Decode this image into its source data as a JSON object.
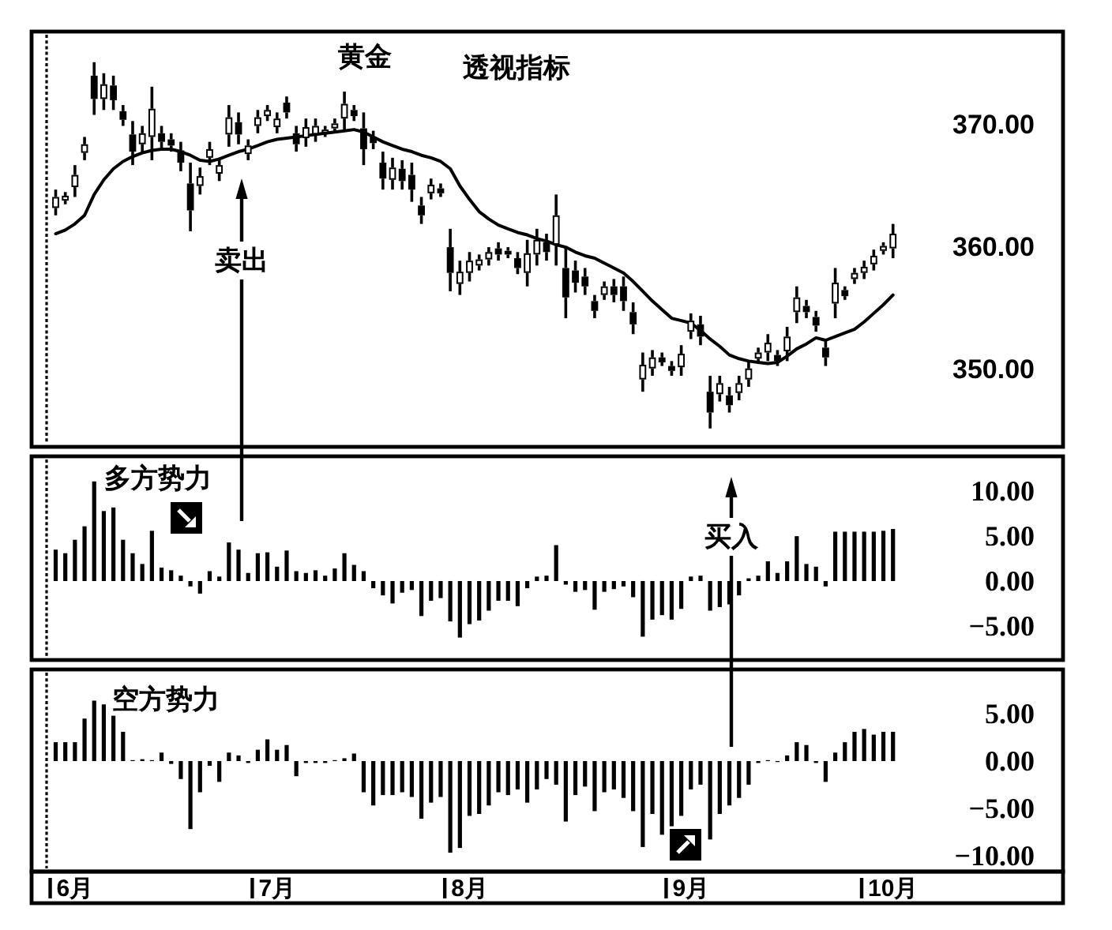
{
  "chart_data": [
    {
      "type": "candlestick",
      "title": "黄金",
      "subtitle": "透视指标",
      "categories": [
        null,
        null,
        null,
        null,
        null,
        null,
        null,
        null,
        null,
        null,
        null,
        null,
        null,
        null,
        null,
        null,
        null,
        null,
        null,
        null,
        null,
        null,
        null,
        null,
        null,
        null,
        null,
        null,
        null,
        null,
        null,
        null,
        null,
        null,
        null,
        null,
        null,
        null,
        null,
        null,
        null,
        null,
        null,
        null,
        null,
        null,
        null,
        null,
        null,
        null,
        null,
        null,
        null,
        null,
        null,
        null,
        null,
        null,
        null,
        null,
        null,
        null,
        null,
        null,
        null,
        null,
        null,
        null,
        null,
        null,
        null,
        null,
        null,
        null,
        null,
        null,
        null,
        null,
        null,
        null,
        null,
        null,
        null,
        null,
        null,
        null,
        null,
        null
      ],
      "ohlc": [
        [
          363.2,
          364.7,
          362.6,
          364.1
        ],
        [
          363.8,
          364.5,
          363.5,
          364.2
        ],
        [
          364.9,
          366.7,
          364.1,
          365.9
        ],
        [
          367.7,
          369.0,
          367.1,
          368.4
        ],
        [
          374.0,
          375.1,
          370.8,
          372.1
        ],
        [
          372.1,
          374.2,
          371.2,
          373.3
        ],
        [
          373.2,
          374.0,
          371.2,
          372.0
        ],
        [
          371.1,
          371.6,
          369.9,
          370.4
        ],
        [
          369.2,
          370.3,
          366.7,
          367.8
        ],
        [
          368.4,
          369.9,
          367.8,
          369.3
        ],
        [
          369.0,
          373.1,
          367.1,
          371.3
        ],
        [
          369.3,
          369.9,
          368.0,
          368.6
        ],
        [
          368.8,
          369.3,
          367.8,
          368.3
        ],
        [
          367.9,
          368.6,
          366.2,
          366.9
        ],
        [
          365.2,
          366.9,
          361.3,
          363.0
        ],
        [
          365.0,
          366.5,
          364.3,
          365.8
        ],
        [
          367.3,
          368.6,
          366.7,
          368.0
        ],
        [
          366.0,
          367.3,
          365.4,
          366.7
        ],
        [
          369.2,
          371.6,
          368.2,
          370.6
        ],
        [
          370.2,
          371.0,
          368.4,
          369.2
        ],
        [
          367.6,
          368.8,
          367.1,
          368.3
        ],
        [
          369.9,
          371.2,
          369.3,
          370.6
        ],
        [
          370.7,
          371.6,
          370.3,
          371.2
        ],
        [
          369.8,
          371.0,
          369.3,
          370.5
        ],
        [
          371.8,
          372.3,
          370.5,
          371.0
        ],
        [
          369.3,
          369.9,
          367.8,
          368.4
        ],
        [
          368.9,
          370.5,
          368.2,
          369.8
        ],
        [
          369.2,
          370.5,
          368.6,
          369.9
        ],
        [
          369.3,
          369.9,
          369.0,
          369.6
        ],
        [
          369.7,
          370.5,
          369.3,
          370.1
        ],
        [
          370.5,
          372.7,
          369.5,
          371.7
        ],
        [
          371.2,
          371.6,
          370.3,
          370.7
        ],
        [
          369.7,
          371.0,
          366.7,
          368.0
        ],
        [
          369.0,
          369.5,
          368.0,
          368.5
        ],
        [
          366.9,
          367.8,
          364.7,
          365.6
        ],
        [
          365.5,
          367.3,
          364.7,
          366.5
        ],
        [
          366.4,
          367.1,
          364.7,
          365.4
        ],
        [
          365.9,
          366.9,
          363.7,
          364.7
        ],
        [
          363.4,
          364.1,
          361.9,
          362.6
        ],
        [
          364.4,
          365.6,
          363.9,
          365.1
        ],
        [
          364.8,
          365.2,
          364.1,
          364.4
        ],
        [
          360.0,
          361.5,
          356.4,
          357.9
        ],
        [
          357.0,
          358.9,
          356.1,
          358.0
        ],
        [
          357.9,
          359.6,
          357.2,
          358.9
        ],
        [
          358.5,
          359.4,
          358.1,
          359.0
        ],
        [
          359.0,
          360.0,
          358.5,
          359.6
        ],
        [
          359.9,
          360.4,
          358.9,
          359.4
        ],
        [
          359.7,
          360.0,
          359.1,
          359.4
        ],
        [
          359.1,
          359.6,
          357.8,
          358.3
        ],
        [
          357.9,
          360.6,
          356.8,
          359.5
        ],
        [
          359.4,
          361.5,
          358.5,
          360.6
        ],
        [
          360.4,
          361.1,
          358.9,
          359.6
        ],
        [
          360.2,
          364.3,
          358.5,
          362.6
        ],
        [
          358.3,
          360.0,
          354.2,
          355.9
        ],
        [
          358.1,
          358.9,
          356.3,
          357.1
        ],
        [
          357.6,
          358.3,
          356.1,
          356.8
        ],
        [
          355.6,
          356.1,
          354.2,
          354.8
        ],
        [
          356.1,
          357.2,
          355.7,
          356.8
        ],
        [
          356.8,
          357.4,
          355.5,
          356.1
        ],
        [
          356.8,
          357.6,
          354.8,
          355.6
        ],
        [
          354.7,
          355.5,
          352.9,
          353.7
        ],
        [
          349.2,
          351.4,
          348.2,
          350.4
        ],
        [
          350.1,
          351.6,
          349.5,
          351.0
        ],
        [
          351.0,
          351.4,
          350.3,
          350.6
        ],
        [
          350.3,
          350.7,
          349.5,
          349.9
        ],
        [
          350.2,
          352.0,
          349.5,
          351.3
        ],
        [
          353.1,
          354.6,
          352.5,
          354.0
        ],
        [
          353.7,
          354.4,
          352.0,
          352.7
        ],
        [
          348.2,
          349.5,
          345.2,
          346.5
        ],
        [
          348.0,
          349.5,
          347.4,
          348.9
        ],
        [
          347.9,
          348.6,
          346.5,
          347.1
        ],
        [
          348.1,
          349.5,
          347.5,
          348.9
        ],
        [
          349.2,
          350.7,
          348.6,
          350.1
        ],
        [
          350.9,
          351.8,
          350.5,
          351.4
        ],
        [
          351.4,
          352.9,
          350.7,
          352.2
        ],
        [
          351.2,
          351.6,
          350.3,
          350.7
        ],
        [
          351.5,
          353.5,
          350.7,
          352.7
        ],
        [
          354.7,
          356.8,
          353.8,
          355.9
        ],
        [
          355.2,
          355.7,
          354.2,
          354.7
        ],
        [
          354.3,
          354.8,
          353.1,
          353.6
        ],
        [
          351.8,
          352.5,
          350.3,
          351.0
        ],
        [
          355.4,
          358.3,
          354.2,
          357.1
        ],
        [
          356.5,
          356.8,
          355.7,
          356.0
        ],
        [
          357.4,
          358.3,
          357.0,
          357.9
        ],
        [
          357.9,
          358.9,
          357.4,
          358.4
        ],
        [
          358.6,
          359.8,
          358.1,
          359.3
        ],
        [
          359.7,
          360.4,
          359.4,
          360.1
        ],
        [
          359.9,
          361.9,
          359.1,
          361.1
        ]
      ],
      "series": [
        {
          "type": "line",
          "color": "#000000",
          "values": [
            361.1,
            361.4,
            361.9,
            362.6,
            364.3,
            365.5,
            366.4,
            367.0,
            367.4,
            367.7,
            367.9,
            368.0,
            368.0,
            367.8,
            367.5,
            367.1,
            367.0,
            367.2,
            367.5,
            367.8,
            368.0,
            368.3,
            368.6,
            368.8,
            368.9,
            369.0,
            369.1,
            369.2,
            369.3,
            369.4,
            369.5,
            369.6,
            369.4,
            369.0,
            368.6,
            368.3,
            368.0,
            367.8,
            367.5,
            367.3,
            367.0,
            366.4,
            365.0,
            363.9,
            362.9,
            362.3,
            361.8,
            361.5,
            361.2,
            361.0,
            360.7,
            360.5,
            360.2,
            360.0,
            359.6,
            359.3,
            359.1,
            358.7,
            358.3,
            357.9,
            357.2,
            356.4,
            355.6,
            354.9,
            354.2,
            354.0,
            353.8,
            353.2,
            352.5,
            351.9,
            351.2,
            350.9,
            350.7,
            350.6,
            350.5,
            350.6,
            351.1,
            351.7,
            352.1,
            352.6,
            352.4,
            352.7,
            353.0,
            353.3,
            353.9,
            354.6,
            355.3,
            356.1
          ]
        }
      ],
      "ylim": [
        343.7,
        377.6
      ],
      "yticks": [
        {
          "value": 370,
          "label": "370.00"
        },
        {
          "value": 360,
          "label": "360.00"
        },
        {
          "value": 350,
          "label": "350.00"
        }
      ],
      "tick_labels": "y",
      "annotations": [
        "卖出"
      ]
    },
    {
      "type": "bar",
      "title": "多方势力",
      "categories": [
        null,
        null,
        null,
        null,
        null,
        null,
        null,
        null,
        null,
        null,
        null,
        null,
        null,
        null,
        null,
        null,
        null,
        null,
        null,
        null,
        null,
        null,
        null,
        null,
        null,
        null,
        null,
        null,
        null,
        null,
        null,
        null,
        null,
        null,
        null,
        null,
        null,
        null,
        null,
        null,
        null,
        null,
        null,
        null,
        null,
        null,
        null,
        null,
        null,
        null,
        null,
        null,
        null,
        null,
        null,
        null,
        null,
        null,
        null,
        null,
        null,
        null,
        null,
        null,
        null,
        null,
        null,
        null,
        null,
        null,
        null,
        null,
        null,
        null,
        null,
        null,
        null,
        null,
        null,
        null,
        null,
        null,
        null,
        null,
        null,
        null,
        null,
        null
      ],
      "series": [
        {
          "color": "#000000",
          "values": [
            3.5,
            3.1,
            4.6,
            6.1,
            11.1,
            7.8,
            8.2,
            4.6,
            3.1,
            1.9,
            5.6,
            1.5,
            1.2,
            0.6,
            -0.6,
            -1.4,
            1.1,
            0.5,
            4.3,
            3.5,
            0.9,
            3.1,
            3.2,
            1.6,
            3.4,
            1.1,
            0.9,
            1.2,
            0.6,
            1.4,
            3.1,
            1.8,
            1.1,
            -0.8,
            -1.6,
            -2.5,
            -1.3,
            -1.0,
            -3.9,
            -2.2,
            -1.9,
            -4.5,
            -6.3,
            -4.8,
            -4.4,
            -3.3,
            -2.2,
            -2.2,
            -2.8,
            -0.8,
            0.5,
            0.6,
            4.0,
            -0.4,
            -1.2,
            -1.0,
            -3.2,
            -1.2,
            -0.9,
            -0.6,
            -1.8,
            -6.2,
            -4.3,
            -3.8,
            -4.3,
            -3.1,
            0.5,
            0.6,
            -3.3,
            -2.9,
            -2.6,
            -1.6,
            0.3,
            0.6,
            2.2,
            0.9,
            2.2,
            5.0,
            1.9,
            1.6,
            -0.6,
            5.5,
            5.5,
            5.5,
            5.5,
            5.5,
            5.6,
            5.8
          ]
        }
      ],
      "ylim": [
        -8.8,
        13.9
      ],
      "yticks": [
        {
          "value": 10,
          "label": "10.00"
        },
        {
          "value": 5,
          "label": "5.00"
        },
        {
          "value": 0,
          "label": "0.00"
        },
        {
          "value": -5,
          "label": "−5.00"
        }
      ],
      "tick_labels": "y",
      "annotations": [
        "买入"
      ]
    },
    {
      "type": "bar",
      "title": "空方势力",
      "categories": [
        null,
        null,
        "6月",
        null,
        null,
        null,
        null,
        null,
        null,
        null,
        null,
        null,
        null,
        null,
        null,
        null,
        null,
        null,
        null,
        null,
        null,
        null,
        null,
        "7月",
        null,
        null,
        null,
        null,
        null,
        null,
        null,
        null,
        null,
        null,
        null,
        null,
        null,
        null,
        null,
        null,
        null,
        null,
        null,
        "8月",
        null,
        null,
        null,
        null,
        null,
        null,
        null,
        null,
        null,
        null,
        null,
        null,
        null,
        null,
        null,
        null,
        null,
        null,
        null,
        null,
        null,
        null,
        "9月",
        null,
        null,
        null,
        null,
        null,
        null,
        null,
        null,
        null,
        null,
        null,
        null,
        null,
        null,
        null,
        null,
        null,
        null,
        null,
        null,
        "10月"
      ],
      "series": [
        {
          "color": "#000000",
          "values": [
            2.0,
            2.0,
            2.0,
            4.5,
            6.4,
            6.0,
            4.8,
            3.1,
            0.1,
            0.2,
            0.1,
            0.9,
            -0.3,
            -1.9,
            -7.2,
            -3.3,
            -0.5,
            -2.2,
            0.9,
            0.6,
            -0.2,
            1.2,
            2.3,
            1.2,
            1.7,
            -1.6,
            -0.2,
            -0.2,
            -0.2,
            0.1,
            0.3,
            0.8,
            -3.3,
            -4.7,
            -3.6,
            -3.6,
            -3.3,
            -3.8,
            -6.1,
            -4.4,
            -3.8,
            -9.7,
            -9.2,
            -5.8,
            -5.6,
            -4.7,
            -3.3,
            -3.6,
            -3.0,
            -4.4,
            -3.0,
            -1.9,
            -2.5,
            -6.4,
            -3.6,
            -2.7,
            -5.3,
            -3.3,
            -3.0,
            -3.9,
            -5.3,
            -9.1,
            -5.6,
            -7.8,
            -6.9,
            -5.8,
            -3.0,
            -2.5,
            -8.3,
            -5.6,
            -4.7,
            -3.9,
            -2.5,
            -0.2,
            0.1,
            -0.1,
            0.6,
            2.0,
            1.7,
            -0.2,
            -2.2,
            0.9,
            2.0,
            3.1,
            3.4,
            2.8,
            3.1,
            3.1
          ]
        }
      ],
      "ylim": [
        -11.7,
        9.7
      ],
      "yticks": [
        {
          "value": 5,
          "label": "5.00"
        },
        {
          "value": 0,
          "label": "0.00"
        },
        {
          "value": -5,
          "label": "−5.00"
        },
        {
          "value": -10,
          "label": "−10.00"
        }
      ]
    }
  ]
}
